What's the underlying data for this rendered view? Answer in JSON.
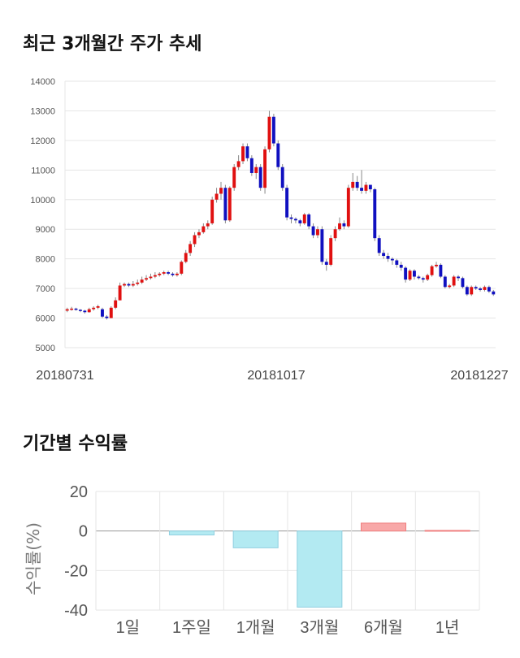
{
  "price_section": {
    "title": "최근 3개월간 주가 추세"
  },
  "returns_section": {
    "title": "기간별 수익률"
  },
  "colors": {
    "up": "#e01010",
    "down": "#1010c0",
    "bar_negative": "#b3eaf2",
    "bar_positive": "#f8a8a8"
  },
  "chart_data": [
    {
      "type": "candlestick",
      "title": "최근 3개월간 주가 추세",
      "ylim": [
        5000,
        14000
      ],
      "yticks": [
        5000,
        6000,
        7000,
        8000,
        9000,
        10000,
        11000,
        12000,
        13000,
        14000
      ],
      "xticks": [
        "20180731",
        "20181017",
        "20181227"
      ],
      "grid": true,
      "series": [
        [
          6250,
          6300,
          6350,
          6200
        ],
        [
          6300,
          6320,
          6380,
          6250
        ],
        [
          6320,
          6280,
          6350,
          6250
        ],
        [
          6280,
          6250,
          6300,
          6200
        ],
        [
          6250,
          6200,
          6280,
          6150
        ],
        [
          6200,
          6300,
          6350,
          6180
        ],
        [
          6300,
          6350,
          6400,
          6250
        ],
        [
          6350,
          6400,
          6450,
          6300
        ],
        [
          6300,
          6050,
          6350,
          6000
        ],
        [
          6050,
          6000,
          6100,
          5950
        ],
        [
          6000,
          6350,
          6400,
          6000
        ],
        [
          6350,
          6600,
          6700,
          6300
        ],
        [
          6600,
          7100,
          7200,
          6600
        ],
        [
          7100,
          7150,
          7200,
          7050
        ],
        [
          7150,
          7100,
          7200,
          7050
        ],
        [
          7100,
          7150,
          7250,
          7050
        ],
        [
          7150,
          7200,
          7300,
          7100
        ],
        [
          7200,
          7300,
          7400,
          7150
        ],
        [
          7300,
          7350,
          7450,
          7250
        ],
        [
          7350,
          7400,
          7500,
          7300
        ],
        [
          7400,
          7450,
          7550,
          7350
        ],
        [
          7450,
          7500,
          7550,
          7400
        ],
        [
          7500,
          7550,
          7600,
          7450
        ],
        [
          7550,
          7500,
          7600,
          7450
        ],
        [
          7500,
          7450,
          7550,
          7400
        ],
        [
          7450,
          7500,
          7550,
          7400
        ],
        [
          7500,
          7900,
          7950,
          7450
        ],
        [
          7900,
          8200,
          8300,
          7850
        ],
        [
          8200,
          8500,
          8600,
          8100
        ],
        [
          8500,
          8800,
          8900,
          8400
        ],
        [
          8800,
          8900,
          9000,
          8700
        ],
        [
          8900,
          9100,
          9200,
          8850
        ],
        [
          9100,
          9200,
          9300,
          9000
        ],
        [
          9200,
          10000,
          10100,
          9150
        ],
        [
          10000,
          10200,
          10400,
          9900
        ],
        [
          10200,
          10400,
          10600,
          10000
        ],
        [
          10400,
          9300,
          10500,
          9200
        ],
        [
          9300,
          10400,
          10450,
          9250
        ],
        [
          10400,
          11100,
          11200,
          10300
        ],
        [
          11100,
          11300,
          11500,
          11000
        ],
        [
          11300,
          11800,
          11900,
          11200
        ],
        [
          11800,
          11400,
          11900,
          11300
        ],
        [
          11400,
          10900,
          11500,
          10800
        ],
        [
          10900,
          11100,
          11200,
          10700
        ],
        [
          11100,
          10400,
          11200,
          10300
        ],
        [
          10400,
          11700,
          11800,
          10200
        ],
        [
          11700,
          12800,
          13000,
          11600
        ],
        [
          12800,
          11900,
          12900,
          11800
        ],
        [
          11900,
          11100,
          12000,
          11000
        ],
        [
          11100,
          10400,
          11200,
          10300
        ],
        [
          10400,
          9400,
          10500,
          9300
        ],
        [
          9400,
          9350,
          9500,
          9200
        ],
        [
          9350,
          9300,
          9400,
          9200
        ],
        [
          9300,
          9200,
          9350,
          9100
        ],
        [
          9200,
          9500,
          9550,
          9150
        ],
        [
          9500,
          9100,
          9550,
          9000
        ],
        [
          9100,
          8800,
          9200,
          8700
        ],
        [
          8800,
          9000,
          9100,
          8700
        ],
        [
          9000,
          7900,
          9100,
          7800
        ],
        [
          7900,
          7800,
          8000,
          7600
        ],
        [
          7800,
          8700,
          8800,
          7750
        ],
        [
          8700,
          9000,
          9100,
          8600
        ],
        [
          9000,
          9200,
          9400,
          8950
        ],
        [
          9200,
          9100,
          9300,
          9000
        ],
        [
          9100,
          10400,
          10500,
          9050
        ],
        [
          10400,
          10600,
          10900,
          10300
        ],
        [
          10600,
          10400,
          10800,
          10300
        ],
        [
          10400,
          10300,
          11000,
          10200
        ],
        [
          10300,
          10500,
          10600,
          10200
        ],
        [
          10500,
          10350,
          10500,
          10250
        ],
        [
          10350,
          8700,
          10400,
          8600
        ],
        [
          8700,
          8200,
          8800,
          8100
        ],
        [
          8200,
          8100,
          8300,
          8000
        ],
        [
          8100,
          8000,
          8200,
          7900
        ],
        [
          8000,
          7950,
          8050,
          7800
        ],
        [
          7950,
          7800,
          8000,
          7700
        ],
        [
          7800,
          7700,
          7900,
          7600
        ],
        [
          7700,
          7300,
          7750,
          7200
        ],
        [
          7300,
          7600,
          7650,
          7250
        ],
        [
          7600,
          7400,
          7650,
          7300
        ],
        [
          7400,
          7350,
          7450,
          7300
        ],
        [
          7350,
          7300,
          7400,
          7200
        ],
        [
          7300,
          7450,
          7500,
          7250
        ],
        [
          7450,
          7750,
          7800,
          7400
        ],
        [
          7750,
          7800,
          7900,
          7700
        ],
        [
          7800,
          7400,
          7850,
          7350
        ],
        [
          7400,
          7050,
          7450,
          7000
        ],
        [
          7050,
          7100,
          7150,
          7000
        ],
        [
          7100,
          7400,
          7450,
          7050
        ],
        [
          7400,
          7350,
          7450,
          7250
        ],
        [
          7350,
          7050,
          7400,
          7000
        ],
        [
          7050,
          6800,
          7100,
          6750
        ],
        [
          6800,
          7050,
          7100,
          6750
        ],
        [
          7050,
          7000,
          7100,
          6950
        ],
        [
          7000,
          6950,
          7050,
          6900
        ],
        [
          6950,
          7050,
          7100,
          6900
        ],
        [
          7050,
          6900,
          7100,
          6850
        ],
        [
          6900,
          6800,
          6950,
          6750
        ]
      ]
    },
    {
      "type": "bar",
      "title": "기간별 수익률",
      "categories": [
        "1일",
        "1주일",
        "1개월",
        "3개월",
        "6개월",
        "1년"
      ],
      "values": [
        0,
        -2.0,
        -8.5,
        -38.5,
        4.0,
        0.3
      ],
      "ylabel": "수익률(%)",
      "ylim": [
        -40,
        20
      ],
      "yticks": [
        -40,
        -20,
        0,
        20
      ],
      "grid": true
    }
  ]
}
